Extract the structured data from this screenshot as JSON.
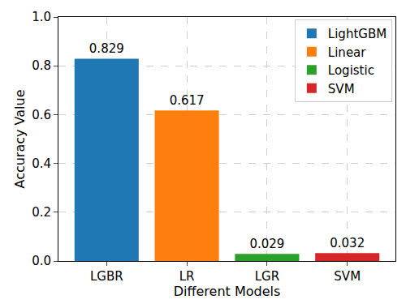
{
  "chart_data": {
    "type": "bar",
    "x_label": "Different Models",
    "y_label": "Accuracy Value",
    "categories": [
      "LGBR",
      "LR",
      "LGR",
      "SVM"
    ],
    "series": [
      {
        "name": "LightGBM",
        "color": "#1f77b4",
        "values": [
          0.829,
          null,
          null,
          null
        ]
      },
      {
        "name": "Linear",
        "color": "#ff7f0e",
        "values": [
          null,
          0.617,
          null,
          null
        ]
      },
      {
        "name": "Logistic",
        "color": "#2ca02c",
        "values": [
          null,
          null,
          0.029,
          null
        ]
      },
      {
        "name": "SVM",
        "color": "#d62728",
        "values": [
          null,
          null,
          null,
          0.032
        ]
      }
    ],
    "ylim": [
      0,
      1
    ],
    "yticks": [
      {
        "value": 0,
        "label": "0.0"
      },
      0.2,
      0.4,
      0.6,
      0.8,
      {
        "value": 1,
        "label": "1.0"
      }
    ],
    "grid": true,
    "legend": "upper right",
    "data_labels": true
  }
}
